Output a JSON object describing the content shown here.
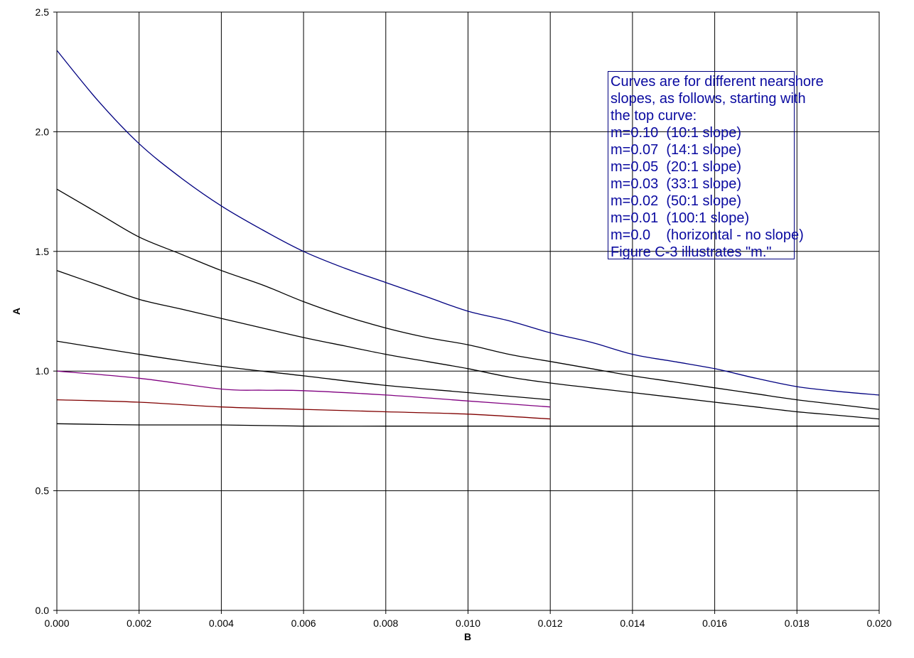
{
  "chart_data": {
    "type": "line",
    "xlabel": "B",
    "ylabel": "A",
    "xlim": [
      0,
      0.02
    ],
    "ylim": [
      0,
      2.5
    ],
    "x_ticks": [
      "0.000",
      "0.002",
      "0.004",
      "0.006",
      "0.008",
      "0.010",
      "0.012",
      "0.014",
      "0.016",
      "0.018",
      "0.020"
    ],
    "y_ticks": [
      "0.0",
      "0.5",
      "1.0",
      "1.5",
      "2.0",
      "2.5"
    ],
    "grid": true,
    "series": [
      {
        "color": "#000080",
        "x": [
          0,
          0.001,
          0.002,
          0.003,
          0.004,
          0.005,
          0.006,
          0.007,
          0.008,
          0.009,
          0.01,
          0.011,
          0.012,
          0.013,
          0.014,
          0.015,
          0.016,
          0.017,
          0.018,
          0.019,
          0.02
        ],
        "y": [
          2.34,
          2.13,
          1.95,
          1.81,
          1.69,
          1.59,
          1.5,
          1.43,
          1.37,
          1.31,
          1.25,
          1.21,
          1.16,
          1.12,
          1.07,
          1.04,
          1.01,
          0.97,
          0.935,
          0.915,
          0.9
        ]
      },
      {
        "color": "#000000",
        "x": [
          0,
          0.001,
          0.002,
          0.003,
          0.004,
          0.005,
          0.006,
          0.007,
          0.008,
          0.009,
          0.01,
          0.011,
          0.012,
          0.013,
          0.014,
          0.015,
          0.016,
          0.017,
          0.018,
          0.019,
          0.02
        ],
        "y": [
          1.76,
          1.66,
          1.56,
          1.49,
          1.42,
          1.36,
          1.29,
          1.23,
          1.18,
          1.14,
          1.11,
          1.07,
          1.04,
          1.01,
          0.98,
          0.955,
          0.93,
          0.905,
          0.88,
          0.86,
          0.84
        ]
      },
      {
        "color": "#000000",
        "x": [
          0,
          0.001,
          0.002,
          0.003,
          0.004,
          0.005,
          0.006,
          0.007,
          0.008,
          0.009,
          0.01,
          0.011,
          0.012,
          0.013,
          0.014,
          0.015,
          0.016,
          0.017,
          0.018,
          0.019,
          0.02
        ],
        "y": [
          1.42,
          1.36,
          1.3,
          1.26,
          1.22,
          1.18,
          1.14,
          1.105,
          1.07,
          1.04,
          1.01,
          0.975,
          0.95,
          0.93,
          0.91,
          0.89,
          0.87,
          0.85,
          0.83,
          0.815,
          0.8
        ]
      },
      {
        "color": "#000000",
        "x": [
          0,
          0.002,
          0.004,
          0.006,
          0.008,
          0.01,
          0.012
        ],
        "y": [
          1.125,
          1.07,
          1.02,
          0.98,
          0.94,
          0.91,
          0.88
        ]
      },
      {
        "color": "#800080",
        "x": [
          0,
          0.002,
          0.004,
          0.005,
          0.006,
          0.008,
          0.01,
          0.012
        ],
        "y": [
          1.0,
          0.97,
          0.925,
          0.92,
          0.918,
          0.9,
          0.875,
          0.85
        ]
      },
      {
        "color": "#800000",
        "x": [
          0,
          0.002,
          0.004,
          0.006,
          0.008,
          0.01,
          0.012
        ],
        "y": [
          0.88,
          0.87,
          0.85,
          0.84,
          0.83,
          0.82,
          0.8
        ]
      },
      {
        "color": "#000000",
        "x": [
          0,
          0.002,
          0.004,
          0.006,
          0.008,
          0.01,
          0.012,
          0.014,
          0.016,
          0.018,
          0.02
        ],
        "y": [
          0.78,
          0.775,
          0.775,
          0.77,
          0.77,
          0.77,
          0.77,
          0.77,
          0.77,
          0.77,
          0.77
        ]
      }
    ],
    "annotation": {
      "lines": [
        "Curves are for different nearshore",
        "slopes, as follows, starting with",
        "the top curve:",
        "m=0.10  (10:1 slope)",
        "m=0.07  (14:1 slope)",
        "m=0.05  (20:1 slope)",
        "m=0.03  (33:1 slope)",
        "m=0.02  (50:1 slope)",
        "m=0.01  (100:1 slope)",
        "m=0.0    (horizontal - no slope)",
        "Figure C-3 illustrates \"m.\""
      ]
    }
  }
}
